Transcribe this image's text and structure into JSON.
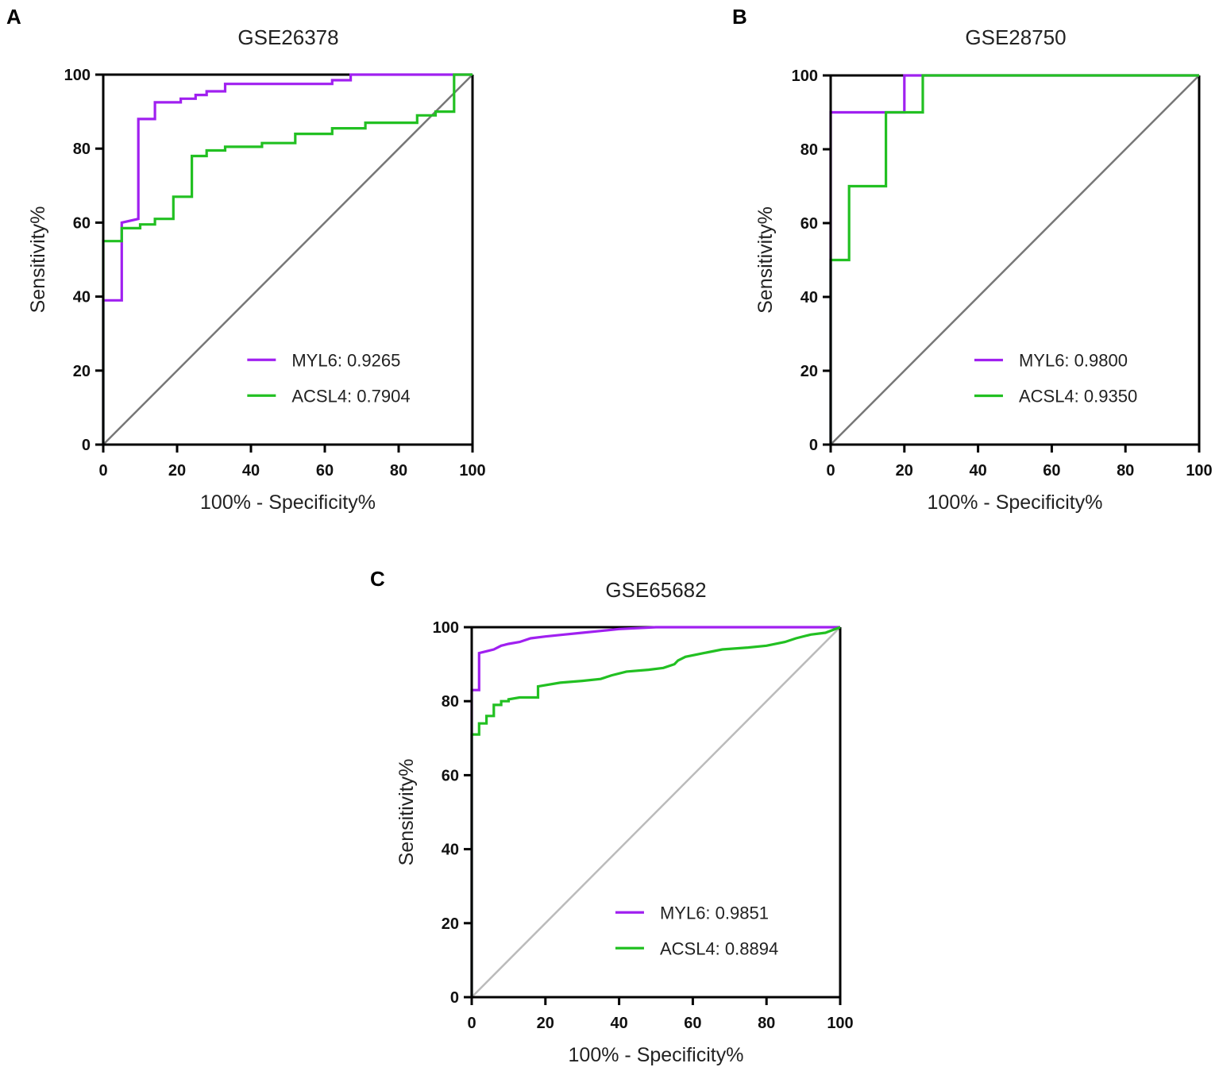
{
  "chart_data": [
    {
      "type": "line",
      "panel": "A",
      "title": "GSE26378",
      "xlabel": "100% - Specificity%",
      "ylabel": "Sensitivity%",
      "xlim": [
        0,
        100
      ],
      "ylim": [
        0,
        100
      ],
      "xticks": [
        "0",
        "20",
        "40",
        "60",
        "80",
        "100"
      ],
      "yticks": [
        "0",
        "20",
        "40",
        "60",
        "80",
        "100"
      ],
      "legend_position": "bottom-right",
      "colors": {
        "MYL6": "#a020f0",
        "ACSL4": "#22c022",
        "reference": "#777777"
      },
      "series": [
        {
          "name": "MYL6",
          "label": "MYL6: 0.9265",
          "points": [
            [
              0,
              0
            ],
            [
              0,
              39
            ],
            [
              5,
              39
            ],
            [
              5,
              60
            ],
            [
              9.5,
              61
            ],
            [
              9.5,
              88
            ],
            [
              14,
              88
            ],
            [
              14,
              92.5
            ],
            [
              21,
              92.5
            ],
            [
              21,
              93.5
            ],
            [
              25,
              93.5
            ],
            [
              25,
              94.5
            ],
            [
              28,
              94.5
            ],
            [
              28,
              95.5
            ],
            [
              33,
              95.5
            ],
            [
              33,
              97.5
            ],
            [
              62,
              97.5
            ],
            [
              62,
              98.5
            ],
            [
              67,
              98.5
            ],
            [
              67,
              100
            ],
            [
              100,
              100
            ]
          ]
        },
        {
          "name": "ACSL4",
          "label": "ACSL4: 0.7904",
          "points": [
            [
              0,
              0
            ],
            [
              0,
              55
            ],
            [
              5,
              55
            ],
            [
              5,
              58.5
            ],
            [
              10,
              58.5
            ],
            [
              10,
              59.5
            ],
            [
              14,
              59.5
            ],
            [
              14,
              61
            ],
            [
              19,
              61
            ],
            [
              19,
              67
            ],
            [
              24,
              67
            ],
            [
              24,
              78
            ],
            [
              28,
              78
            ],
            [
              28,
              79.5
            ],
            [
              33,
              79.5
            ],
            [
              33,
              80.5
            ],
            [
              43,
              80.5
            ],
            [
              43,
              81.5
            ],
            [
              52,
              81.5
            ],
            [
              52,
              84
            ],
            [
              62,
              84
            ],
            [
              62,
              85.5
            ],
            [
              71,
              85.5
            ],
            [
              71,
              87
            ],
            [
              85,
              87
            ],
            [
              85,
              89
            ],
            [
              90,
              89
            ],
            [
              90,
              90
            ],
            [
              95,
              90
            ],
            [
              95,
              100
            ],
            [
              100,
              100
            ]
          ]
        }
      ]
    },
    {
      "type": "line",
      "panel": "B",
      "title": "GSE28750",
      "xlabel": "100% - Specificity%",
      "ylabel": "Sensitivity%",
      "xlim": [
        0,
        100
      ],
      "ylim": [
        0,
        100
      ],
      "xticks": [
        "0",
        "20",
        "40",
        "60",
        "80",
        "100"
      ],
      "yticks": [
        "0",
        "20",
        "40",
        "60",
        "80",
        "100"
      ],
      "legend_position": "bottom-right",
      "colors": {
        "MYL6": "#a020f0",
        "ACSL4": "#22c022",
        "reference": "#777777"
      },
      "series": [
        {
          "name": "MYL6",
          "label": "MYL6: 0.9800",
          "points": [
            [
              0,
              0
            ],
            [
              0,
              90
            ],
            [
              20,
              90
            ],
            [
              20,
              100
            ],
            [
              100,
              100
            ]
          ]
        },
        {
          "name": "ACSL4",
          "label": "ACSL4: 0.9350",
          "points": [
            [
              0,
              0
            ],
            [
              0,
              50
            ],
            [
              5,
              50
            ],
            [
              5,
              70
            ],
            [
              15,
              70
            ],
            [
              15,
              90
            ],
            [
              25,
              90
            ],
            [
              25,
              100
            ],
            [
              100,
              100
            ]
          ]
        }
      ]
    },
    {
      "type": "line",
      "panel": "C",
      "title": "GSE65682",
      "xlabel": "100% - Specificity%",
      "ylabel": "Sensitivity%",
      "xlim": [
        0,
        100
      ],
      "ylim": [
        0,
        100
      ],
      "xticks": [
        "0",
        "20",
        "40",
        "60",
        "80",
        "100"
      ],
      "yticks": [
        "0",
        "20",
        "40",
        "60",
        "80",
        "100"
      ],
      "legend_position": "bottom-right",
      "colors": {
        "MYL6": "#a020f0",
        "ACSL4": "#22c022",
        "reference": "#bbbbbb"
      },
      "series": [
        {
          "name": "MYL6",
          "label": "MYL6: 0.9851",
          "points": [
            [
              0,
              0
            ],
            [
              0,
              83
            ],
            [
              2,
              83
            ],
            [
              2,
              93
            ],
            [
              4,
              93.5
            ],
            [
              6,
              94
            ],
            [
              8,
              95
            ],
            [
              10,
              95.5
            ],
            [
              13,
              96
            ],
            [
              16,
              97
            ],
            [
              20,
              97.5
            ],
            [
              25,
              98
            ],
            [
              30,
              98.5
            ],
            [
              35,
              99
            ],
            [
              40,
              99.5
            ],
            [
              50,
              100
            ],
            [
              100,
              100
            ]
          ]
        },
        {
          "name": "ACSL4",
          "label": "ACSL4: 0.8894",
          "points": [
            [
              0,
              0
            ],
            [
              0,
              71
            ],
            [
              2,
              71
            ],
            [
              2,
              74
            ],
            [
              4,
              74
            ],
            [
              4,
              76
            ],
            [
              6,
              76
            ],
            [
              6,
              79
            ],
            [
              8,
              79
            ],
            [
              8,
              80
            ],
            [
              10,
              80
            ],
            [
              10,
              80.5
            ],
            [
              13,
              81
            ],
            [
              18,
              81
            ],
            [
              18,
              84
            ],
            [
              24,
              85
            ],
            [
              30,
              85.5
            ],
            [
              35,
              86
            ],
            [
              38,
              87
            ],
            [
              42,
              88
            ],
            [
              48,
              88.5
            ],
            [
              52,
              89
            ],
            [
              55,
              90
            ],
            [
              56,
              91
            ],
            [
              58,
              92
            ],
            [
              63,
              93
            ],
            [
              68,
              94
            ],
            [
              75,
              94.5
            ],
            [
              80,
              95
            ],
            [
              85,
              96
            ],
            [
              88,
              97
            ],
            [
              92,
              98
            ],
            [
              96,
              98.5
            ],
            [
              100,
              100
            ]
          ]
        }
      ]
    }
  ]
}
